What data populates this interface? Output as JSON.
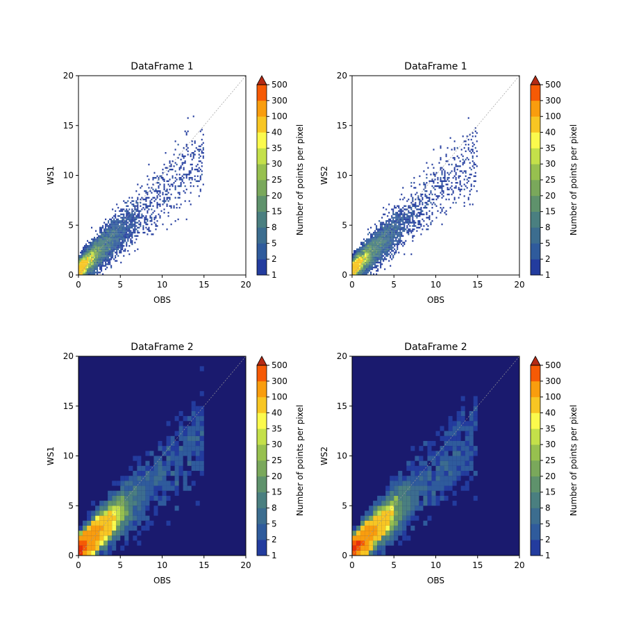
{
  "chart_data": [
    {
      "type": "heatmap",
      "title": "DataFrame 1",
      "xlabel": "OBS",
      "ylabel": "WS1",
      "xlim": [
        0,
        20
      ],
      "ylim": [
        0,
        20
      ],
      "xticks": [
        "0",
        "5",
        "10",
        "15",
        "20"
      ],
      "yticks": [
        "0",
        "5",
        "10",
        "15",
        "20"
      ],
      "background": "#ffffff",
      "bins": 120,
      "spread": 0.9,
      "seed": 11,
      "diagonal": true,
      "colorbar": {
        "label": "Number of points per pixel",
        "levels": [
          "1",
          "2",
          "5",
          "8",
          "15",
          "20",
          "25",
          "30",
          "35",
          "40",
          "100",
          "300",
          "500"
        ],
        "extend": "max"
      }
    },
    {
      "type": "heatmap",
      "title": "DataFrame 1",
      "xlabel": "OBS",
      "ylabel": "WS2",
      "xlim": [
        0,
        20
      ],
      "ylim": [
        0,
        20
      ],
      "xticks": [
        "0",
        "5",
        "10",
        "15",
        "20"
      ],
      "yticks": [
        "0",
        "5",
        "10",
        "15",
        "20"
      ],
      "background": "#ffffff",
      "bins": 120,
      "spread": 0.9,
      "seed": 23,
      "diagonal": true,
      "colorbar": {
        "label": "Number of points per pixel",
        "levels": [
          "1",
          "2",
          "5",
          "8",
          "15",
          "20",
          "25",
          "30",
          "35",
          "40",
          "100",
          "300",
          "500"
        ],
        "extend": "max"
      }
    },
    {
      "type": "heatmap",
      "title": "DataFrame 2",
      "xlabel": "OBS",
      "ylabel": "WS1",
      "xlim": [
        0,
        20
      ],
      "ylim": [
        0,
        20
      ],
      "xticks": [
        "0",
        "5",
        "10",
        "15",
        "20"
      ],
      "yticks": [
        "0",
        "5",
        "10",
        "15",
        "20"
      ],
      "background": "#1a1a6e",
      "bins": 40,
      "spread": 1.0,
      "seed": 37,
      "diagonal": true,
      "colorbar": {
        "label": "Number of points per pixel",
        "levels": [
          "1",
          "2",
          "5",
          "8",
          "15",
          "20",
          "25",
          "30",
          "35",
          "40",
          "100",
          "300",
          "500"
        ],
        "extend": "max"
      }
    },
    {
      "type": "heatmap",
      "title": "DataFrame 2",
      "xlabel": "OBS",
      "ylabel": "WS2",
      "xlim": [
        0,
        20
      ],
      "ylim": [
        0,
        20
      ],
      "xticks": [
        "0",
        "5",
        "10",
        "15",
        "20"
      ],
      "yticks": [
        "0",
        "5",
        "10",
        "15",
        "20"
      ],
      "background": "#1a1a6e",
      "bins": 40,
      "spread": 1.0,
      "seed": 53,
      "diagonal": true,
      "colorbar": {
        "label": "Number of points per pixel",
        "levels": [
          "1",
          "2",
          "5",
          "8",
          "15",
          "20",
          "25",
          "30",
          "35",
          "40",
          "100",
          "300",
          "500"
        ],
        "extend": "max"
      }
    }
  ],
  "colors": [
    "#233c9e",
    "#2f5b9c",
    "#3c6d8f",
    "#4a7f80",
    "#5f926c",
    "#7aa85b",
    "#97c04f",
    "#c4e04a",
    "#fbfa4d",
    "#f8c623",
    "#f99d0e",
    "#f65a05",
    "#e8300a"
  ],
  "extend_color": "#b52a14"
}
